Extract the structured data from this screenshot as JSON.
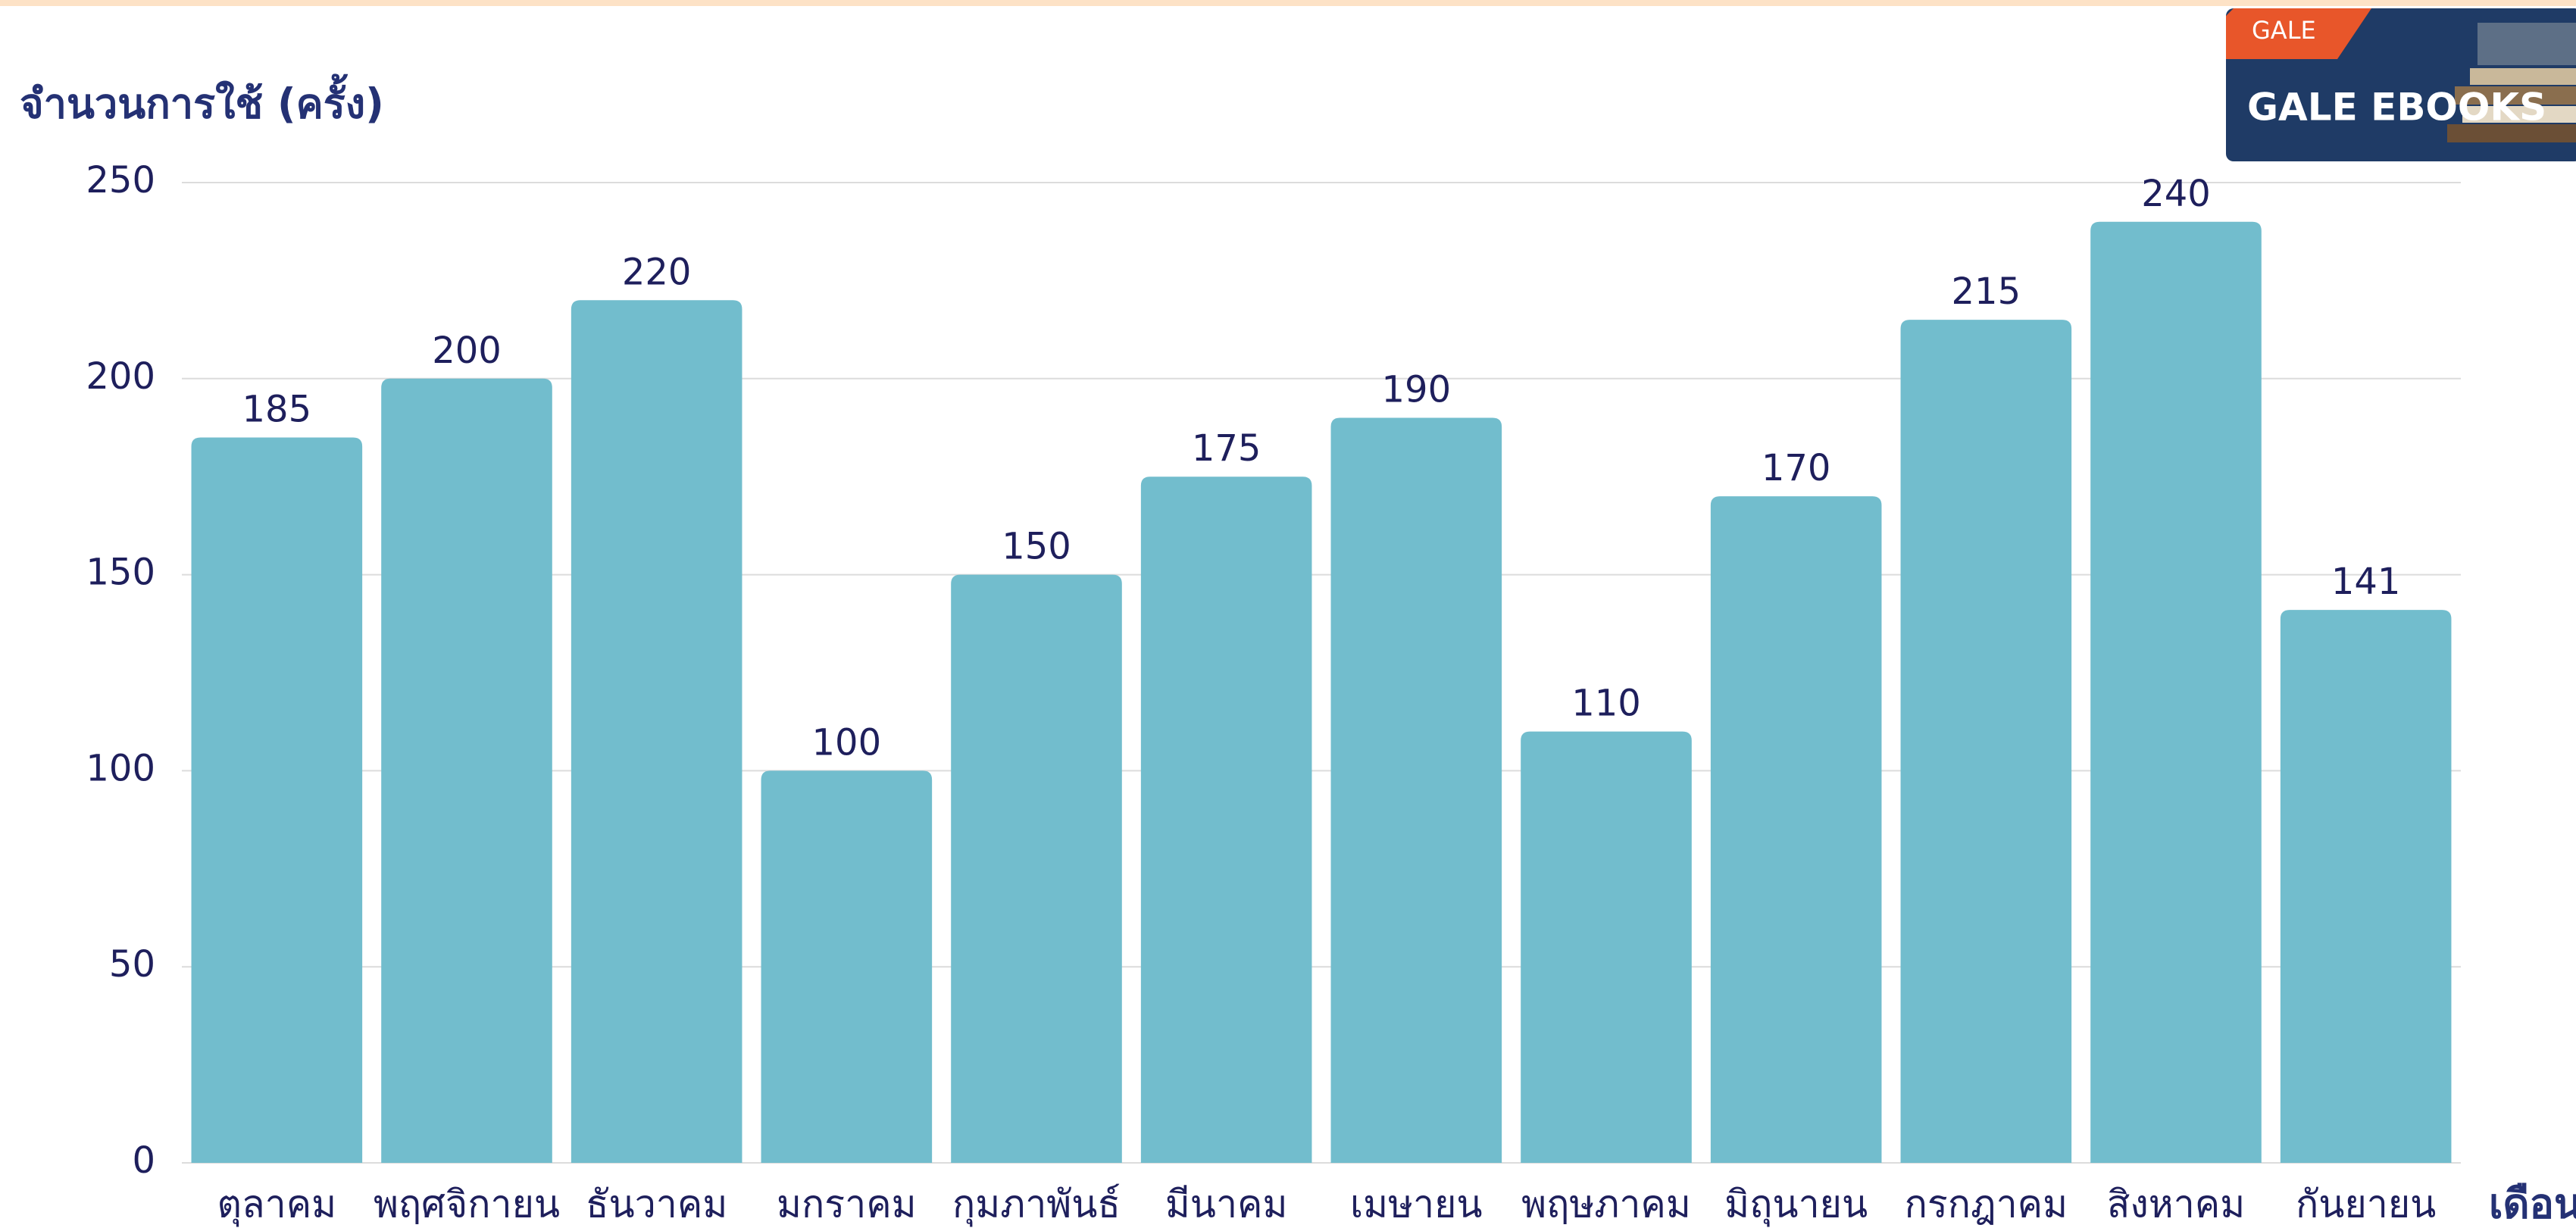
{
  "chart_data": {
    "type": "bar",
    "y_axis_title": "จำนวนการใช้ (ครั้ง)",
    "x_axis_title": "เดือน",
    "categories": [
      "ตุลาคม",
      "พฤศจิกายน",
      "ธันวาคม",
      "มกราคม",
      "กุมภาพันธ์",
      "มีนาคม",
      "เมษายน",
      "พฤษภาคม",
      "มิถุนายน",
      "กรกฎาคม",
      "สิงหาคม",
      "กันยายน"
    ],
    "values": [
      185,
      200,
      220,
      100,
      150,
      175,
      190,
      110,
      170,
      215,
      240,
      141
    ],
    "color": "#72bdcd",
    "ylim": [
      0,
      250
    ],
    "yticks": [
      0,
      50,
      100,
      150,
      200,
      250
    ],
    "grid": true
  },
  "logo": {
    "brand": "GALE",
    "title": "GALE EBOOKS"
  }
}
